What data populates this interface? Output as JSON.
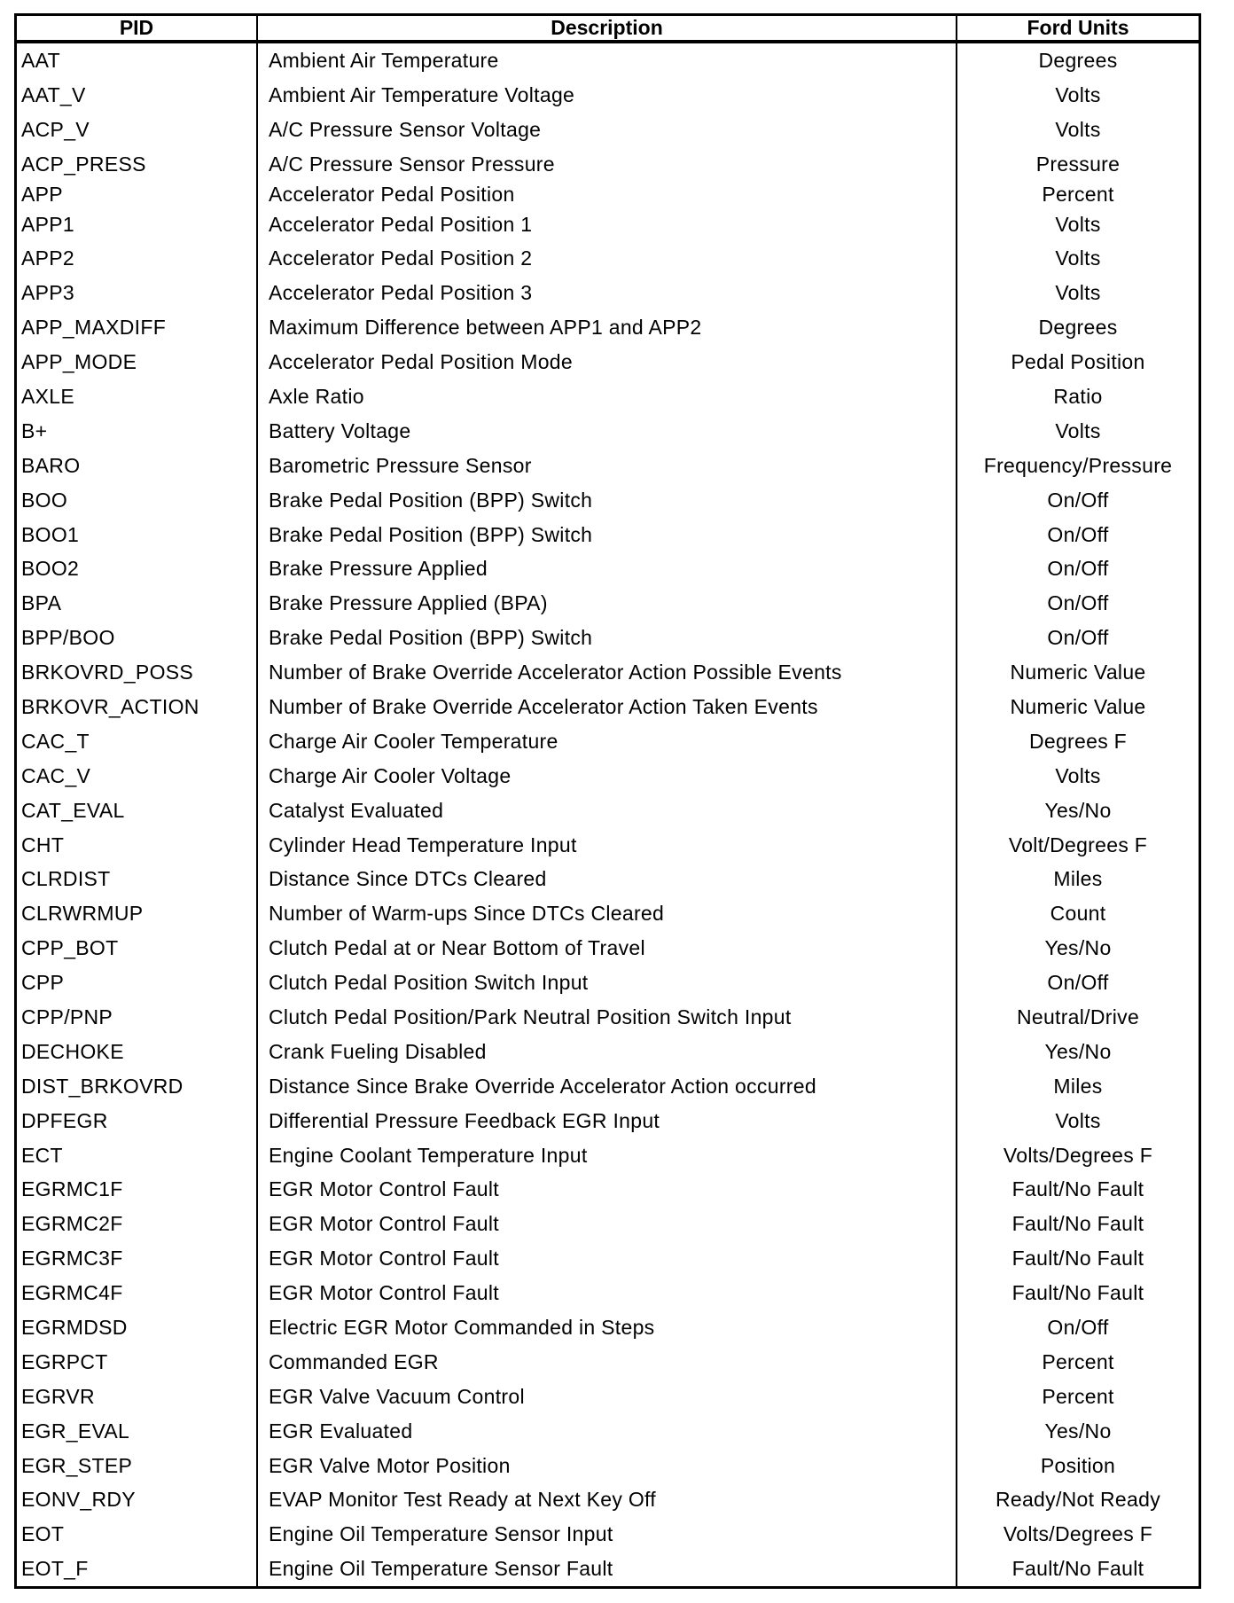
{
  "headers": {
    "pid": "PID",
    "description": "Description",
    "units": "Ford Units"
  },
  "rows": [
    {
      "pid": "AAT",
      "desc": "Ambient Air Temperature",
      "units": "Degrees"
    },
    {
      "pid": "AAT_V",
      "desc": "Ambient Air Temperature Voltage",
      "units": "Volts"
    },
    {
      "pid": "ACP_V",
      "desc": "A/C Pressure Sensor Voltage",
      "units": "Volts"
    },
    {
      "pid": "ACP_PRESS",
      "desc": "A/C Pressure Sensor Pressure",
      "units": "Pressure"
    },
    {
      "pid": "APP",
      "desc": "Accelerator Pedal Position",
      "units": "Percent"
    },
    {
      "pid": "APP1",
      "desc": "Accelerator Pedal Position 1",
      "units": "Volts"
    },
    {
      "pid": "APP2",
      "desc": "Accelerator Pedal Position 2",
      "units": "Volts"
    },
    {
      "pid": "APP3",
      "desc": "Accelerator Pedal Position 3",
      "units": "Volts"
    },
    {
      "pid": "APP_MAXDIFF",
      "desc": "Maximum Difference between APP1 and APP2",
      "units": "Degrees"
    },
    {
      "pid": "APP_MODE",
      "desc": "Accelerator Pedal Position Mode",
      "units": "Pedal Position"
    },
    {
      "pid": "AXLE",
      "desc": "Axle Ratio",
      "units": "Ratio"
    },
    {
      "pid": "B+",
      "desc": "Battery Voltage",
      "units": "Volts"
    },
    {
      "pid": "BARO",
      "desc": "Barometric Pressure Sensor",
      "units": "Frequency/Pressure"
    },
    {
      "pid": "BOO",
      "desc": "Brake Pedal Position (BPP) Switch",
      "units": "On/Off"
    },
    {
      "pid": "BOO1",
      "desc": "Brake Pedal Position (BPP) Switch",
      "units": "On/Off"
    },
    {
      "pid": "BOO2",
      "desc": "Brake Pressure Applied",
      "units": "On/Off"
    },
    {
      "pid": "BPA",
      "desc": "Brake Pressure Applied (BPA)",
      "units": "On/Off"
    },
    {
      "pid": "BPP/BOO",
      "desc": "Brake Pedal Position (BPP) Switch",
      "units": "On/Off"
    },
    {
      "pid": "BRKOVRD_POSS",
      "desc": "Number of Brake Override Accelerator Action Possible Events",
      "units": "Numeric Value"
    },
    {
      "pid": "BRKOVR_ACTION",
      "desc": "Number of Brake Override Accelerator Action Taken Events",
      "units": "Numeric Value"
    },
    {
      "pid": "CAC_T",
      "desc": "Charge Air Cooler Temperature",
      "units": "Degrees F"
    },
    {
      "pid": "CAC_V",
      "desc": "Charge Air Cooler Voltage",
      "units": "Volts"
    },
    {
      "pid": "CAT_EVAL",
      "desc": "Catalyst Evaluated",
      "units": "Yes/No"
    },
    {
      "pid": "CHT",
      "desc": "Cylinder Head Temperature Input",
      "units": "Volt/Degrees F"
    },
    {
      "pid": "CLRDIST",
      "desc": "Distance Since DTCs Cleared",
      "units": "Miles"
    },
    {
      "pid": "CLRWRMUP",
      "desc": "Number of Warm-ups Since DTCs Cleared",
      "units": "Count"
    },
    {
      "pid": "CPP_BOT",
      "desc": "Clutch Pedal at or Near Bottom of Travel",
      "units": "Yes/No"
    },
    {
      "pid": "CPP",
      "desc": "Clutch Pedal Position Switch Input",
      "units": "On/Off"
    },
    {
      "pid": "CPP/PNP",
      "desc": "Clutch Pedal Position/Park Neutral Position Switch Input",
      "units": "Neutral/Drive"
    },
    {
      "pid": "DECHOKE",
      "desc": "Crank Fueling Disabled",
      "units": "Yes/No"
    },
    {
      "pid": "DIST_BRKOVRD",
      "desc": "Distance Since Brake Override Accelerator Action occurred",
      "units": "Miles"
    },
    {
      "pid": "DPFEGR",
      "desc": "Differential Pressure Feedback EGR Input",
      "units": "Volts"
    },
    {
      "pid": "ECT",
      "desc": "Engine Coolant Temperature Input",
      "units": "Volts/Degrees F"
    },
    {
      "pid": "EGRMC1F",
      "desc": "EGR Motor Control Fault",
      "units": "Fault/No Fault"
    },
    {
      "pid": "EGRMC2F",
      "desc": "EGR Motor Control Fault",
      "units": "Fault/No Fault"
    },
    {
      "pid": "EGRMC3F",
      "desc": "EGR Motor Control Fault",
      "units": "Fault/No Fault"
    },
    {
      "pid": "EGRMC4F",
      "desc": "EGR Motor Control Fault",
      "units": "Fault/No Fault"
    },
    {
      "pid": "EGRMDSD",
      "desc": "Electric EGR Motor Commanded in Steps",
      "units": "On/Off"
    },
    {
      "pid": "EGRPCT",
      "desc": "Commanded EGR",
      "units": "Percent"
    },
    {
      "pid": "EGRVR",
      "desc": "EGR Valve Vacuum Control",
      "units": "Percent"
    },
    {
      "pid": "EGR_EVAL",
      "desc": "EGR Evaluated",
      "units": "Yes/No"
    },
    {
      "pid": "EGR_STEP",
      "desc": "EGR Valve Motor Position",
      "units": "Position"
    },
    {
      "pid": "EONV_RDY",
      "desc": "EVAP Monitor Test Ready at Next Key Off",
      "units": "Ready/Not Ready"
    },
    {
      "pid": "EOT",
      "desc": "Engine Oil Temperature Sensor Input",
      "units": "Volts/Degrees F"
    },
    {
      "pid": "EOT_F",
      "desc": "Engine Oil Temperature Sensor Fault",
      "units": "Fault/No Fault"
    }
  ]
}
